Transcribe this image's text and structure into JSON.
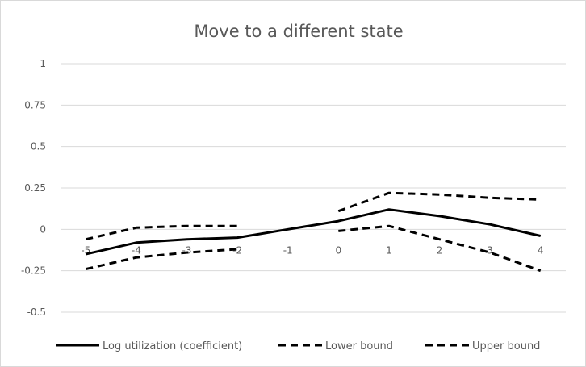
{
  "chart_data": {
    "type": "line",
    "title": "Move to a different state",
    "xlabel": "",
    "ylabel": "",
    "categories": [
      "-5",
      "-4",
      "-3",
      "-2",
      "-1",
      "0",
      "1",
      "2",
      "3",
      "4"
    ],
    "ylim": [
      -0.5,
      1
    ],
    "yticks": [
      "1",
      "0.75",
      "0.5",
      "0.25",
      "0",
      "-0.25",
      "-0.5"
    ],
    "grid": true,
    "legend_position": "bottom",
    "series": [
      {
        "name": "Log utilization (coefficient)",
        "style": "solid",
        "color": "#000000",
        "values": [
          -0.15,
          -0.08,
          -0.06,
          -0.05,
          0.0,
          0.05,
          0.12,
          0.08,
          0.03,
          -0.04
        ]
      },
      {
        "name": "Lower bound",
        "style": "dashed",
        "color": "#000000",
        "values": [
          -0.24,
          -0.17,
          -0.14,
          -0.12,
          null,
          -0.01,
          0.02,
          -0.06,
          -0.14,
          -0.25
        ]
      },
      {
        "name": "Upper bound",
        "style": "dashed",
        "color": "#000000",
        "values": [
          -0.06,
          0.01,
          0.02,
          0.02,
          null,
          0.11,
          0.22,
          0.21,
          0.19,
          0.18
        ]
      }
    ]
  }
}
